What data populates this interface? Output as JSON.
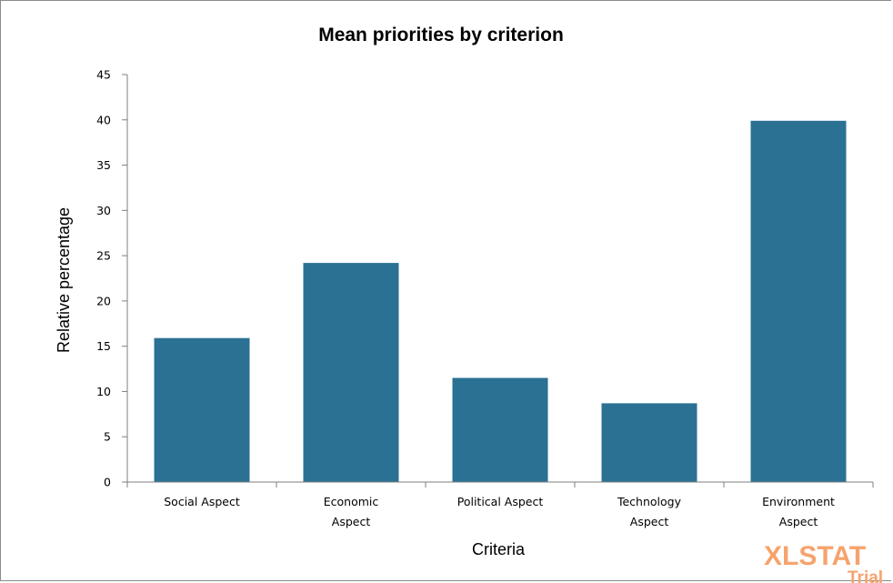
{
  "chart_data": {
    "type": "bar",
    "title": "Mean priorities by criterion",
    "xlabel": "Criteria",
    "ylabel": "Relative percentage",
    "categories": [
      "Social Aspect",
      "Economic Aspect",
      "Political Aspect",
      "Technology Aspect",
      "Environment Aspect"
    ],
    "category_lines": [
      [
        "Social Aspect"
      ],
      [
        "Economic",
        "Aspect"
      ],
      [
        "Political Aspect"
      ],
      [
        "Technology",
        "Aspect"
      ],
      [
        "Environment",
        "Aspect"
      ]
    ],
    "values": [
      15.9,
      24.2,
      11.5,
      8.7,
      39.9
    ],
    "ylim": [
      0,
      45
    ],
    "yticks": [
      0,
      5,
      10,
      15,
      20,
      25,
      30,
      35,
      40,
      45
    ],
    "grid": false,
    "legend": "none",
    "bar_color": "#2a7194"
  },
  "watermark": {
    "line1": "XLSTAT",
    "line2": "Trial",
    "color": "#f6a36d"
  }
}
